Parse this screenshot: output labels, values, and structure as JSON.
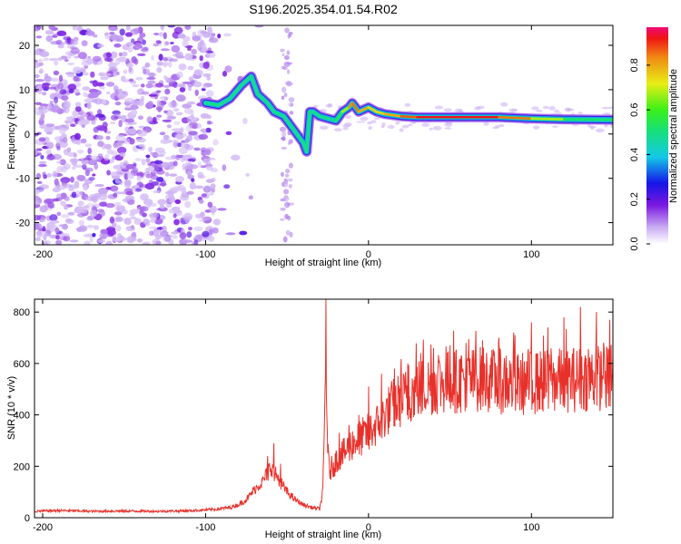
{
  "title": "S196.2025.354.01.54.R02",
  "colors": {
    "snr_line": "#e8302a",
    "ridge_core": "#d21e1e",
    "axis": "#000000"
  },
  "chart_data": [
    {
      "type": "heatmap",
      "name": "spectrogram",
      "xlabel": "Height of straight line (km)",
      "ylabel": "Frequency (Hz)",
      "xlim": [
        -205,
        150
      ],
      "ylim": [
        -25,
        24.5
      ],
      "xticks": [
        -200,
        -100,
        0,
        100
      ],
      "xtick_labels": [
        "-200",
        "-100",
        "0",
        "100"
      ],
      "yticks": [
        -20,
        -10,
        0,
        10,
        20
      ],
      "ytick_labels": [
        "-20",
        "-10",
        "0",
        "10",
        "20"
      ],
      "colorbar": {
        "label": "Normalized spectral amplitude",
        "range": [
          0,
          0.97
        ],
        "ticks": [
          0.0,
          0.2,
          0.4,
          0.6,
          0.8
        ],
        "tick_labels": [
          "0.0",
          "0.2",
          "0.4",
          "0.6",
          "0.8"
        ]
      },
      "ridge": {
        "x": [
          -100,
          -92,
          -85,
          -78,
          -72,
          -68,
          -62,
          -58,
          -52,
          -48,
          -44,
          -40,
          -38,
          -36,
          -34,
          -30,
          -25,
          -20,
          -16,
          -12,
          -10,
          -6,
          0,
          5,
          10,
          20,
          30,
          50,
          80,
          100,
          120,
          150
        ],
        "y": [
          7,
          6.5,
          8,
          11,
          13,
          9,
          7,
          5,
          4,
          2,
          0,
          -2,
          -4,
          5,
          5,
          4,
          3.5,
          3,
          5,
          6,
          7,
          5,
          6,
          5,
          4.5,
          4,
          3.8,
          3.8,
          3.8,
          3.5,
          3.3,
          3.2
        ],
        "amplitude": [
          0.3,
          0.35,
          0.35,
          0.4,
          0.45,
          0.35,
          0.3,
          0.3,
          0.3,
          0.3,
          0.35,
          0.35,
          0.3,
          0.35,
          0.35,
          0.4,
          0.45,
          0.5,
          0.6,
          0.8,
          0.9,
          0.85,
          0.8,
          0.75,
          0.8,
          0.85,
          0.95,
          0.97,
          0.95,
          0.8,
          0.6,
          0.45
        ]
      }
    },
    {
      "type": "line",
      "name": "snr",
      "xlabel": "Height of straight line (km)",
      "ylabel": "SNR (10 * v/v)",
      "xlim": [
        -205,
        150
      ],
      "ylim": [
        0,
        850
      ],
      "xticks": [
        -200,
        -100,
        0,
        100
      ],
      "xtick_labels": [
        "-200",
        "-100",
        "0",
        "100"
      ],
      "yticks": [
        0,
        200,
        400,
        600,
        800
      ],
      "ytick_labels": [
        "0",
        "200",
        "400",
        "600",
        "800"
      ],
      "series": [
        {
          "name": "SNR",
          "x": [
            -205,
            -190,
            -170,
            -150,
            -130,
            -110,
            -95,
            -85,
            -80,
            -75,
            -70,
            -65,
            -60,
            -58,
            -55,
            -50,
            -45,
            -40,
            -35,
            -30,
            -28,
            -26,
            -25,
            -24,
            -22,
            -20,
            -18,
            -15,
            -10,
            -5,
            0,
            5,
            10,
            15,
            20,
            25,
            30,
            40,
            50,
            60,
            70,
            80,
            90,
            100,
            110,
            120,
            130,
            140,
            150
          ],
          "values": [
            25,
            28,
            25,
            26,
            25,
            27,
            32,
            40,
            50,
            70,
            110,
            140,
            200,
            180,
            150,
            100,
            70,
            50,
            40,
            35,
            100,
            650,
            250,
            180,
            200,
            220,
            240,
            250,
            290,
            310,
            330,
            360,
            400,
            440,
            460,
            480,
            500,
            520,
            530,
            535,
            540,
            530,
            520,
            525,
            530,
            535,
            540,
            545,
            540
          ],
          "peaks": {
            "x": [
              -62,
              -58,
              -54,
              -26,
              -18,
              -12,
              -6,
              0,
              8,
              16,
              24,
              32,
              40,
              50,
              60,
              70,
              80,
              90,
              100,
              110,
              120,
              130,
              140,
              148
            ],
            "values": [
              240,
              290,
              210,
              850,
              330,
              360,
              400,
              510,
              560,
              580,
              600,
              640,
              660,
              670,
              680,
              690,
              700,
              710,
              760,
              740,
              780,
              820,
              800,
              770
            ]
          }
        }
      ]
    }
  ]
}
